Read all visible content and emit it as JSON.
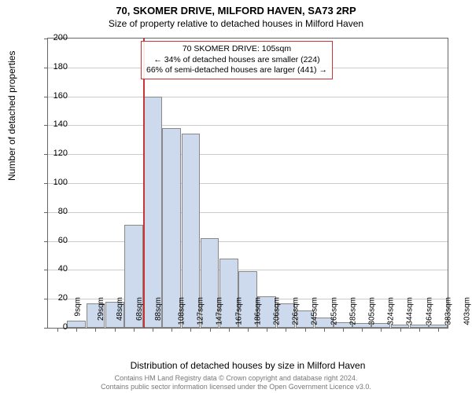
{
  "title": "70, SKOMER DRIVE, MILFORD HAVEN, SA73 2RP",
  "subtitle": "Size of property relative to detached houses in Milford Haven",
  "ylabel": "Number of detached properties",
  "xlabel": "Distribution of detached houses by size in Milford Haven",
  "chart": {
    "type": "histogram",
    "ylim": [
      0,
      200
    ],
    "ytick_step": 20,
    "background_color": "#ffffff",
    "grid_color": "#cccccc",
    "bar_color": "#cdd9ec",
    "bar_border_color": "#888888",
    "marker_color": "#cc3333",
    "categories": [
      "9sqm",
      "29sqm",
      "48sqm",
      "68sqm",
      "88sqm",
      "108sqm",
      "127sqm",
      "147sqm",
      "167sqm",
      "186sqm",
      "206sqm",
      "226sqm",
      "245sqm",
      "265sqm",
      "285sqm",
      "305sqm",
      "324sqm",
      "344sqm",
      "364sqm",
      "383sqm",
      "403sqm"
    ],
    "values": [
      0,
      5,
      17,
      18,
      71,
      160,
      138,
      134,
      62,
      48,
      39,
      22,
      17,
      12,
      7,
      4,
      3,
      3,
      2,
      2,
      2
    ],
    "marker_index_position": 5.0,
    "annotation": {
      "line1": "70 SKOMER DRIVE: 105sqm",
      "line2": "← 34% of detached houses are smaller (224)",
      "line3": "66% of semi-detached houses are larger (441) →"
    }
  },
  "footer": {
    "line1": "Contains HM Land Registry data © Crown copyright and database right 2024.",
    "line2": "Contains public sector information licensed under the Open Government Licence v3.0."
  }
}
